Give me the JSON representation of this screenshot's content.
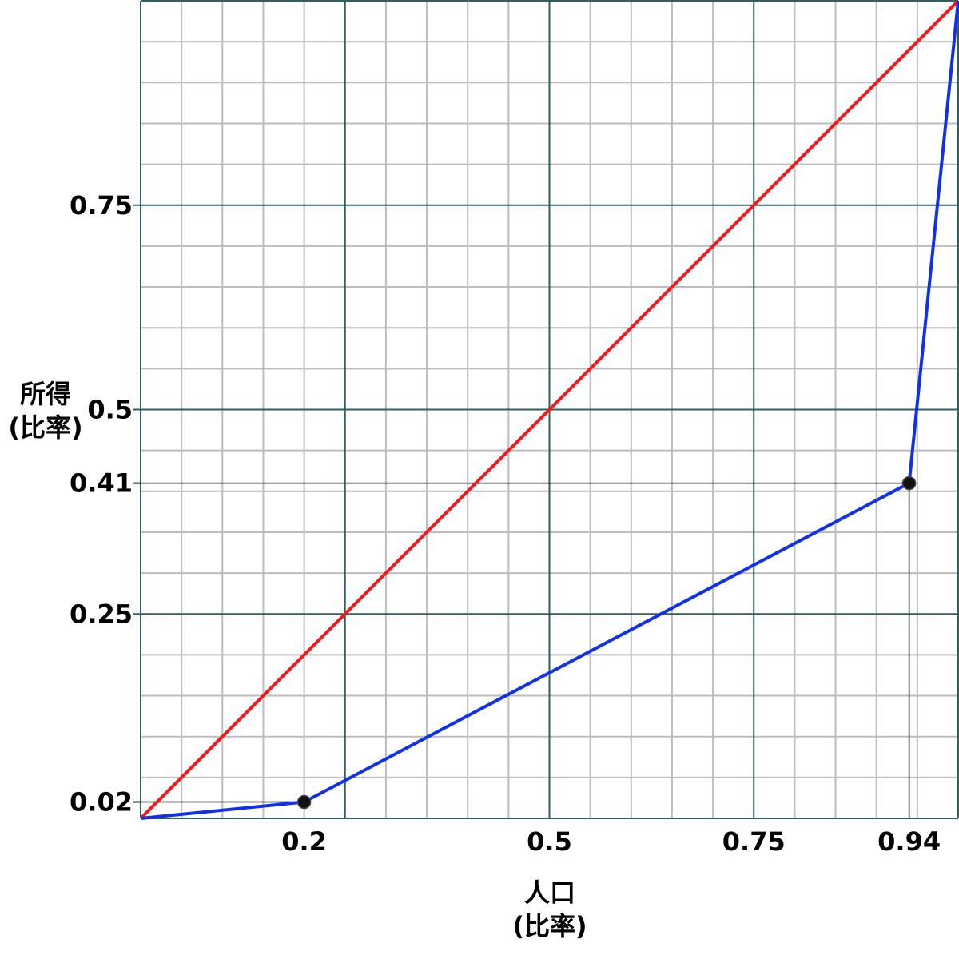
{
  "chart_data": {
    "type": "line",
    "xlabel": [
      "人口",
      "(比率)"
    ],
    "ylabel": [
      "所得",
      "(比率)"
    ],
    "xlim": [
      0,
      1
    ],
    "ylim": [
      0,
      1
    ],
    "grid": true,
    "x_ticks": [
      {
        "value": 0.2,
        "label": "0.2"
      },
      {
        "value": 0.5,
        "label": "0.5"
      },
      {
        "value": 0.75,
        "label": "0.75"
      },
      {
        "value": 0.94,
        "label": "0.94"
      }
    ],
    "y_ticks": [
      {
        "value": 0.75,
        "label": "0.75"
      },
      {
        "value": 0.5,
        "label": "0.5"
      },
      {
        "value": 0.41,
        "label": "0.41"
      },
      {
        "value": 0.25,
        "label": "0.25"
      },
      {
        "value": 0.02,
        "label": "0.02"
      }
    ],
    "series": [
      {
        "color": "#ee1c1c",
        "points": [
          [
            0,
            0
          ],
          [
            1,
            1
          ]
        ],
        "markers": []
      },
      {
        "color": "#1030ee",
        "points": [
          [
            0,
            0
          ],
          [
            0.2,
            0.02
          ],
          [
            0.94,
            0.41
          ],
          [
            1,
            1
          ]
        ],
        "markers": [
          [
            0.2,
            0.02
          ],
          [
            0.94,
            0.41
          ]
        ]
      }
    ],
    "reference_lines": [
      {
        "axis": "x",
        "value": 0.94,
        "to_y": 0.41
      },
      {
        "axis": "y",
        "value": 0.41,
        "to_x": 0.94
      },
      {
        "axis": "y",
        "value": 0.02,
        "to_x": 0.2
      }
    ],
    "colors": {
      "grid_minor": "#bdbdbd",
      "grid_major": "#2f5f5f",
      "reference": "#000000",
      "marker": "#111111"
    }
  }
}
